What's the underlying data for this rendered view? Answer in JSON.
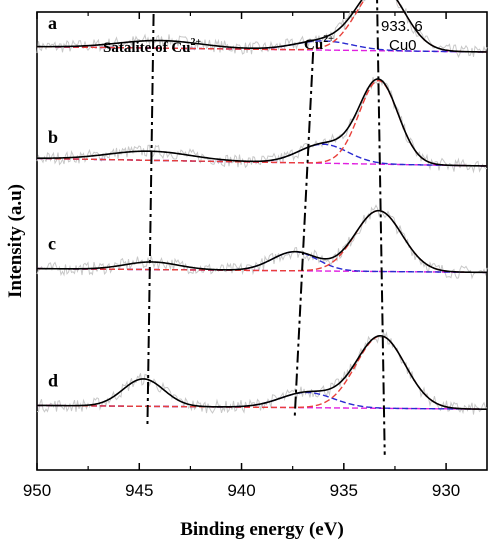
{
  "chart_data": {
    "type": "line",
    "title": "",
    "xlabel": "Binding energy (eV)",
    "ylabel": "Intensity (a.u)",
    "xlim": [
      950,
      928
    ],
    "x_reversed": true,
    "xticks": [
      950,
      945,
      940,
      935,
      930
    ],
    "grid": false,
    "legend": "none",
    "annotations": [
      {
        "key": "sat",
        "text": "Satalite of Cu",
        "sup": "2+"
      },
      {
        "key": "cu2",
        "text": "Cu",
        "sup": "2+"
      },
      {
        "key": "peak",
        "text": "933. 6",
        "sup": ""
      },
      {
        "key": "cu0",
        "text": "Cu0",
        "sup": ""
      }
    ],
    "guide_lines": [
      {
        "name": "satellite",
        "points": [
          [
            944.3,
            6.0
          ],
          [
            944.6,
            0.6
          ]
        ]
      },
      {
        "name": "cu2+",
        "points": [
          [
            936.5,
            5.5
          ],
          [
            937.4,
            0.7
          ]
        ]
      },
      {
        "name": "cu0",
        "points": [
          [
            933.4,
            6.6
          ],
          [
            933.0,
            0.2
          ]
        ]
      }
    ],
    "series": [
      {
        "name": "a",
        "offset": 5.5,
        "baseline": [
          0.07,
          0.0
        ],
        "peaks": [
          [
            933.2,
            0.85,
            1.15
          ],
          [
            936.0,
            0.12,
            1.4
          ],
          [
            944.0,
            0.1,
            2.0
          ]
        ],
        "fit_cu0": [
          933.2,
          0.85,
          1.15
        ],
        "fit_cu2": [
          936.0,
          0.12,
          1.4
        ]
      },
      {
        "name": "b",
        "offset": 4.0,
        "baseline": [
          0.1,
          0.0
        ],
        "peaks": [
          [
            933.3,
            1.1,
            0.95
          ],
          [
            936.0,
            0.25,
            1.2
          ],
          [
            944.5,
            0.12,
            2.0
          ]
        ],
        "fit_cu0": [
          933.3,
          1.1,
          0.95
        ],
        "fit_cu2": [
          936.0,
          0.25,
          1.2
        ]
      },
      {
        "name": "c",
        "offset": 2.6,
        "baseline": [
          0.05,
          0.0
        ],
        "peaks": [
          [
            933.3,
            0.8,
            1.15
          ],
          [
            937.4,
            0.25,
            1.1
          ],
          [
            944.4,
            0.1,
            1.3
          ]
        ],
        "fit_cu0": [
          933.3,
          0.8,
          1.15
        ],
        "fit_cu2": [
          937.4,
          0.25,
          1.1
        ]
      },
      {
        "name": "d",
        "offset": 0.8,
        "baseline": [
          0.05,
          0.0
        ],
        "peaks": [
          [
            933.2,
            0.95,
            1.2
          ],
          [
            936.8,
            0.2,
            1.3
          ],
          [
            944.8,
            0.36,
            1.0
          ]
        ],
        "fit_cu0": [
          933.2,
          0.95,
          1.2
        ],
        "fit_cu2": [
          936.8,
          0.2,
          1.3
        ]
      }
    ],
    "colors": {
      "fit_total": "#000000",
      "fit_cu0": "#e8403a",
      "fit_cu2": "#2a2ad0",
      "baseline": "#e020e0",
      "raw": "#c8c8c8"
    }
  }
}
